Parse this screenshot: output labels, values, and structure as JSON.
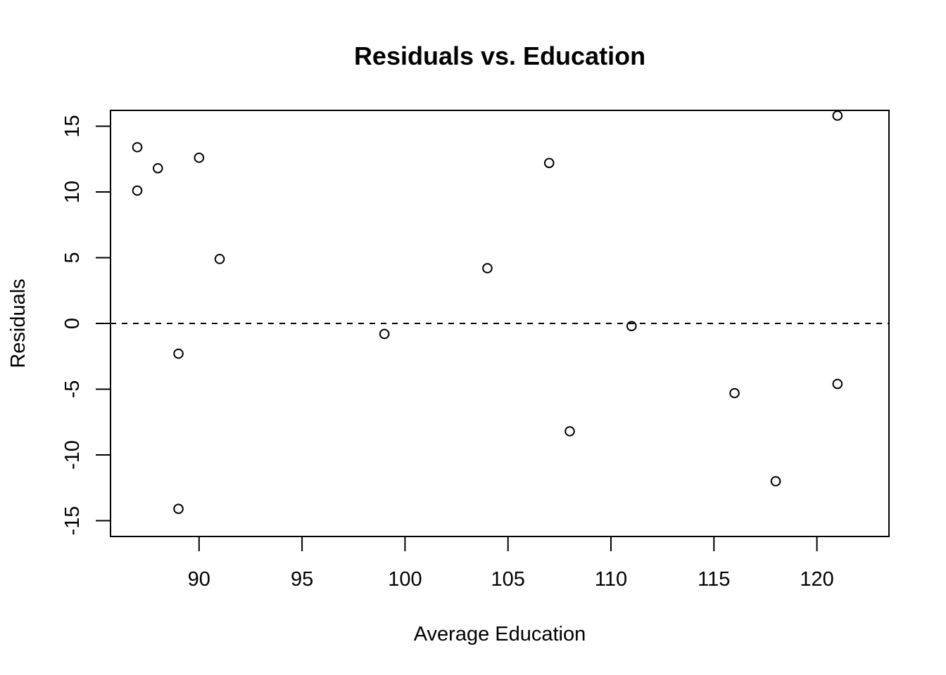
{
  "chart_data": {
    "type": "scatter",
    "title": "Residuals vs. Education",
    "xlabel": "Average Education",
    "ylabel": "Residuals",
    "xlim": [
      85.7,
      123.5
    ],
    "ylim": [
      -16.2,
      16.2
    ],
    "x_ticks": [
      90,
      95,
      100,
      105,
      110,
      115,
      120
    ],
    "y_ticks": [
      -15,
      -10,
      -5,
      0,
      5,
      10,
      15
    ],
    "x_tick_labels": [
      "90",
      "95",
      "100",
      "105",
      "110",
      "115",
      "120"
    ],
    "y_tick_labels": [
      "-15",
      "-10",
      "-5",
      "0",
      "5",
      "10",
      "15"
    ],
    "reference_line": {
      "y": 0,
      "style": "dashed"
    },
    "grid": false,
    "marker": "open-circle",
    "series": [
      {
        "points": [
          {
            "x": 87,
            "y": 13.4
          },
          {
            "x": 87,
            "y": 10.1
          },
          {
            "x": 88,
            "y": 11.8
          },
          {
            "x": 89,
            "y": -2.3
          },
          {
            "x": 89,
            "y": -14.1
          },
          {
            "x": 90,
            "y": 12.6
          },
          {
            "x": 91,
            "y": 4.9
          },
          {
            "x": 99,
            "y": -0.8
          },
          {
            "x": 104,
            "y": 4.2
          },
          {
            "x": 107,
            "y": 12.2
          },
          {
            "x": 108,
            "y": -8.2
          },
          {
            "x": 111,
            "y": -0.2
          },
          {
            "x": 116,
            "y": -5.3
          },
          {
            "x": 118,
            "y": -12.0
          },
          {
            "x": 121,
            "y": 15.8
          },
          {
            "x": 121,
            "y": -4.6
          }
        ]
      }
    ]
  }
}
